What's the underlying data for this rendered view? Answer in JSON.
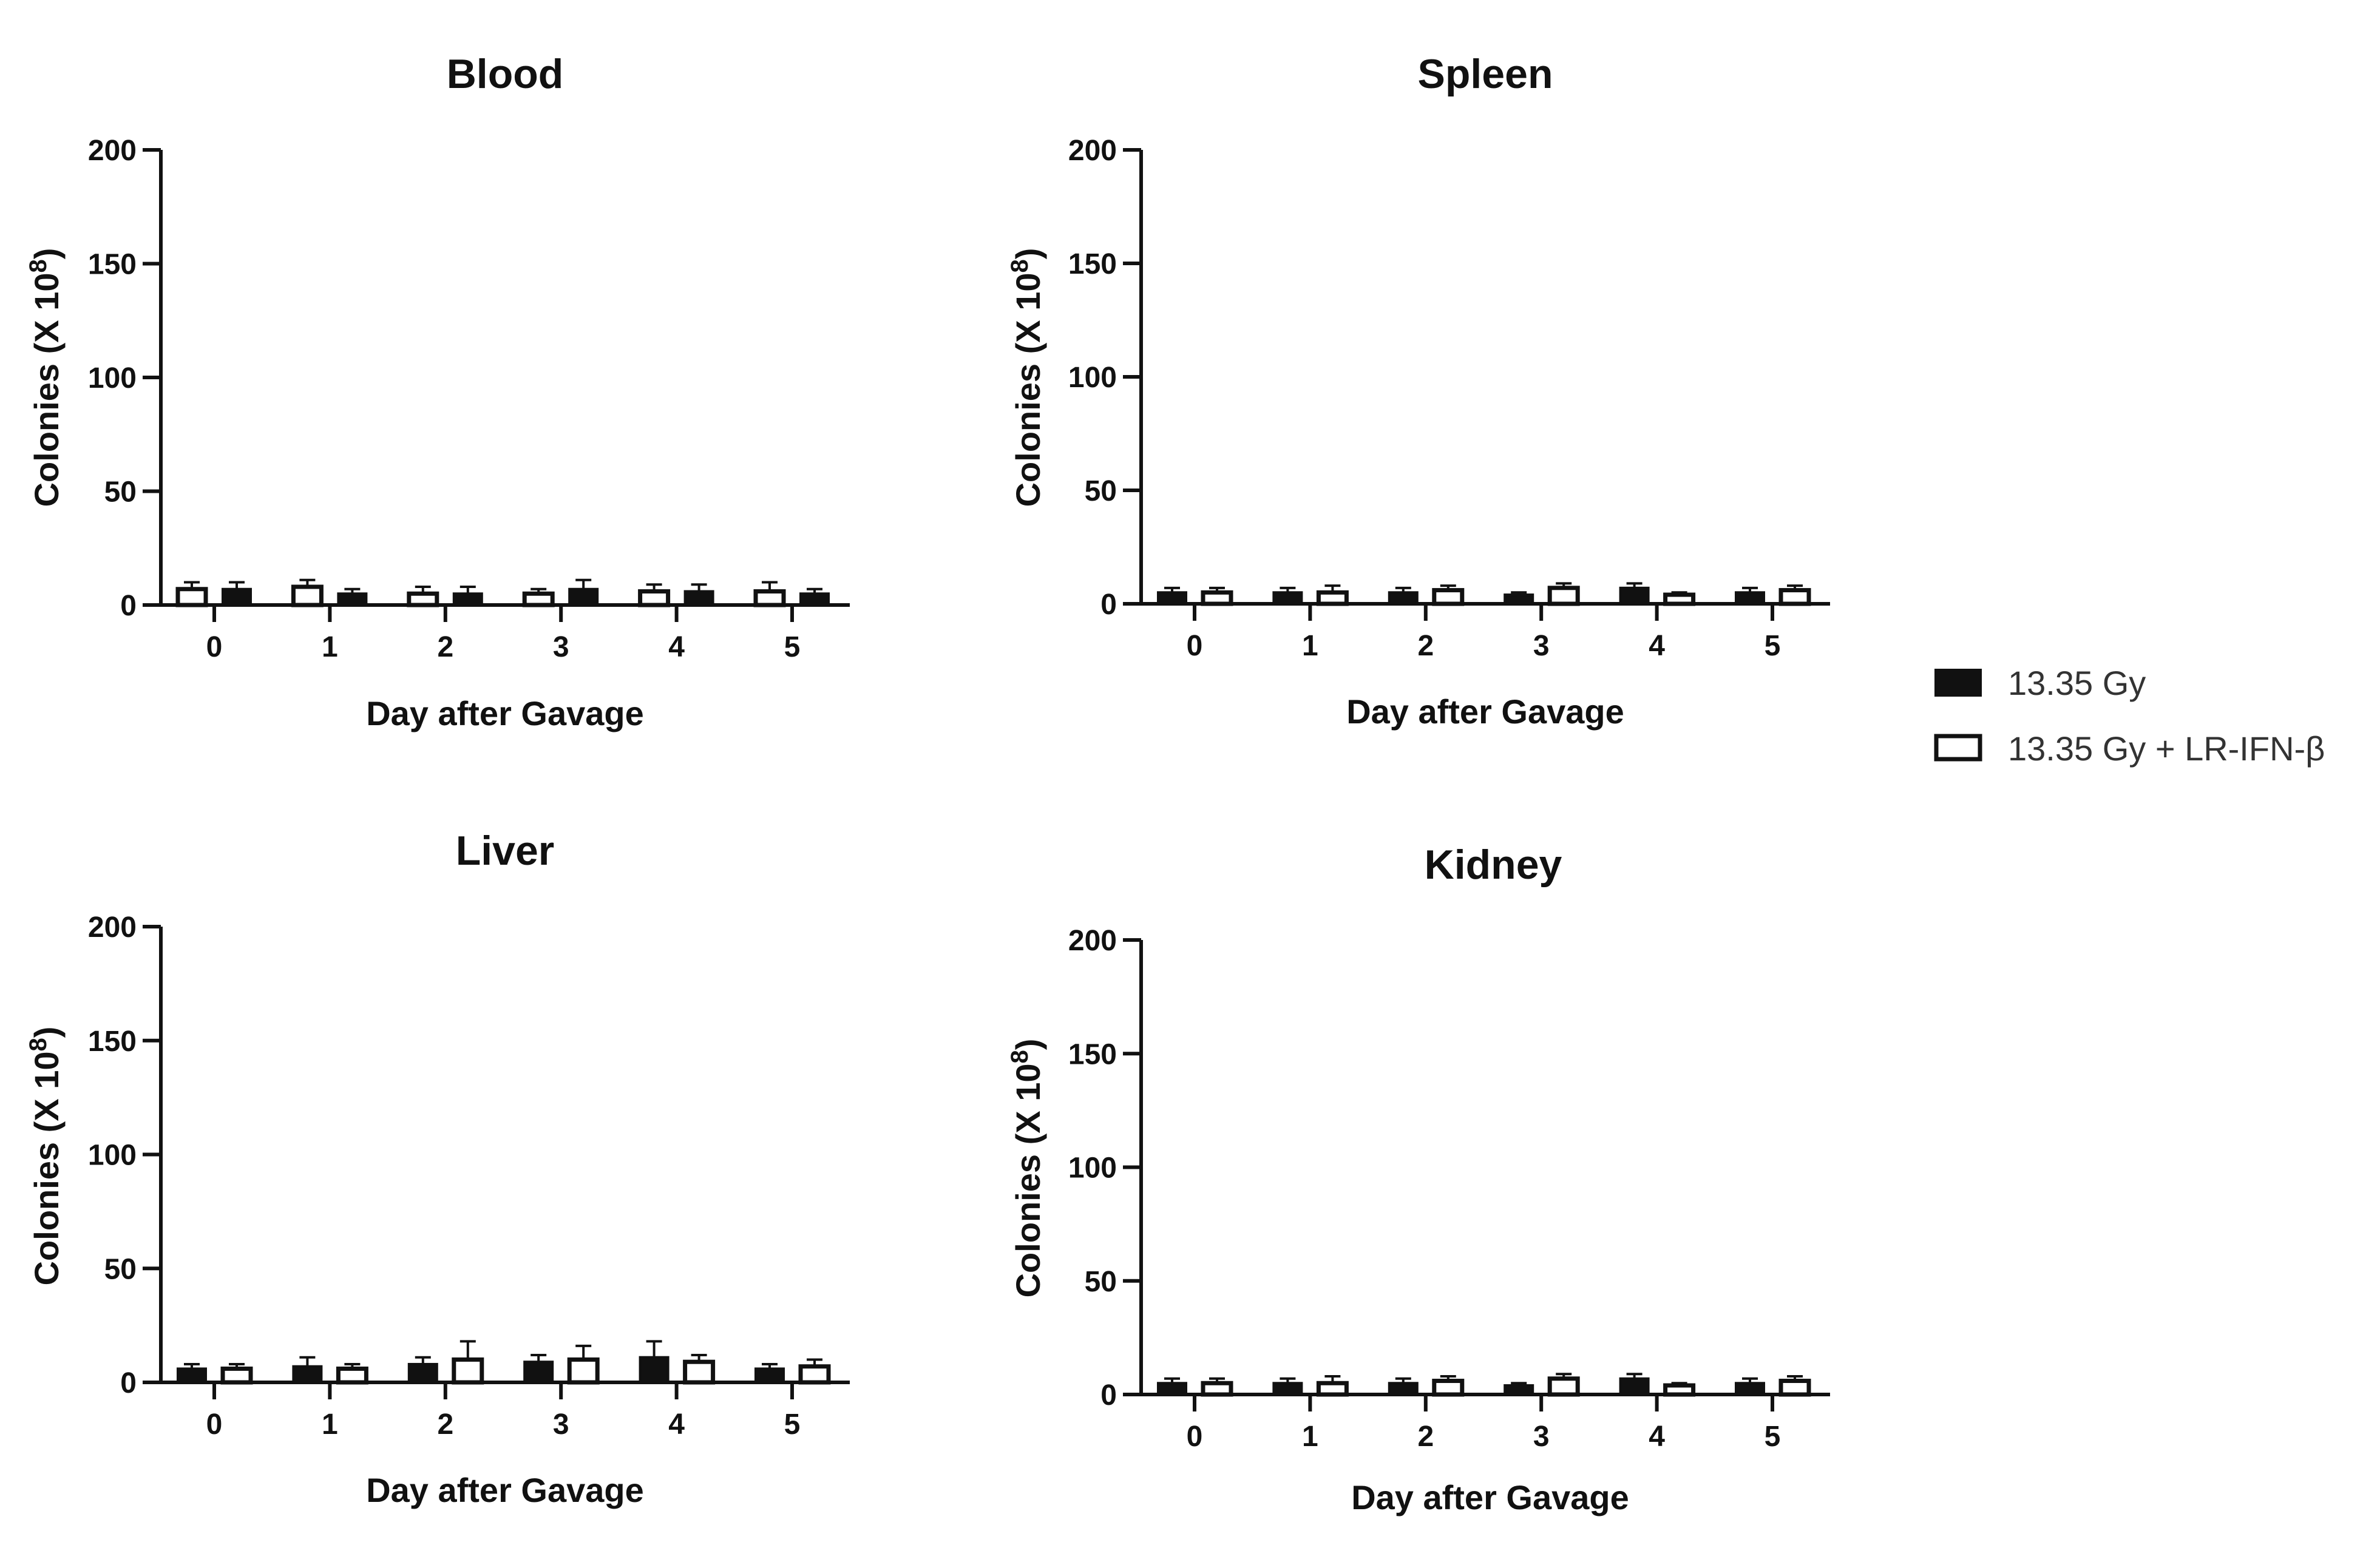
{
  "chart_data": [
    {
      "type": "bar",
      "title": "Blood",
      "xlabel": "Day after Gavage",
      "ylabel_main": "Colonies (X 10",
      "ylabel_sup": "8",
      "ylabel_close": ")",
      "ylim": [
        0,
        200
      ],
      "yticks": [
        0,
        50,
        100,
        150,
        200
      ],
      "categories": [
        "0",
        "1",
        "2",
        "3",
        "4",
        "5"
      ],
      "series": [
        {
          "name": "13.35 Gy + LR-IFN-β",
          "values": [
            7,
            8,
            5,
            5,
            6,
            6
          ],
          "errors": [
            3,
            3,
            3,
            2,
            3,
            4
          ]
        },
        {
          "name": "13.35 Gy",
          "values": [
            7,
            5,
            5,
            7,
            6,
            5
          ],
          "errors": [
            3,
            2,
            3,
            4,
            3,
            2
          ]
        }
      ]
    },
    {
      "type": "bar",
      "title": "Spleen",
      "xlabel": "Day after Gavage",
      "ylabel_main": "Colonies (X 10",
      "ylabel_sup": "8",
      "ylabel_close": ")",
      "ylim": [
        0,
        200
      ],
      "yticks": [
        0,
        50,
        100,
        150,
        200
      ],
      "categories": [
        "0",
        "1",
        "2",
        "3",
        "4",
        "5"
      ],
      "series": [
        {
          "name": "13.35 Gy",
          "values": [
            5,
            5,
            5,
            4,
            7,
            5
          ],
          "errors": [
            2,
            2,
            2,
            1,
            2,
            2
          ]
        },
        {
          "name": "13.35 Gy + LR-IFN-β",
          "values": [
            5,
            5,
            6,
            7,
            4,
            6
          ],
          "errors": [
            2,
            3,
            2,
            2,
            1,
            2
          ]
        }
      ]
    },
    {
      "type": "bar",
      "title": "Liver",
      "xlabel": "Day after Gavage",
      "ylabel_main": "Colonies (X 10",
      "ylabel_sup": "8",
      "ylabel_close": ")",
      "ylim": [
        0,
        200
      ],
      "yticks": [
        0,
        50,
        100,
        150,
        200
      ],
      "categories": [
        "0",
        "1",
        "2",
        "3",
        "4",
        "5"
      ],
      "series": [
        {
          "name": "13.35 Gy",
          "values": [
            6,
            7,
            8,
            9,
            11,
            6
          ],
          "errors": [
            2,
            4,
            3,
            3,
            7,
            2
          ]
        },
        {
          "name": "13.35 Gy + LR-IFN-β",
          "values": [
            6,
            6,
            10,
            10,
            9,
            7
          ],
          "errors": [
            2,
            2,
            8,
            6,
            3,
            3
          ]
        }
      ]
    },
    {
      "type": "bar",
      "title": "Kidney",
      "xlabel": "Day after Gavage",
      "ylabel_main": "Colonies (X 10",
      "ylabel_sup": "8",
      "ylabel_close": ")",
      "ylim": [
        0,
        200
      ],
      "yticks": [
        0,
        50,
        100,
        150,
        200
      ],
      "categories": [
        "0",
        "1",
        "2",
        "3",
        "4",
        "5"
      ],
      "series": [
        {
          "name": "13.35 Gy",
          "values": [
            5,
            5,
            5,
            4,
            7,
            5
          ],
          "errors": [
            2,
            2,
            2,
            1,
            2,
            2
          ]
        },
        {
          "name": "13.35 Gy + LR-IFN-β",
          "values": [
            5,
            5,
            6,
            7,
            4,
            6
          ],
          "errors": [
            2,
            3,
            2,
            2,
            1,
            2
          ]
        }
      ]
    }
  ],
  "legend": {
    "placement": "right",
    "items": [
      {
        "label": "13.35 Gy",
        "fill": "#111111"
      },
      {
        "label": "13.35 Gy + LR-IFN-β",
        "fill": "#ffffff"
      }
    ]
  },
  "colors": {
    "bar_dark": "#111111",
    "bar_light": "#ffffff",
    "axis": "#111111"
  }
}
